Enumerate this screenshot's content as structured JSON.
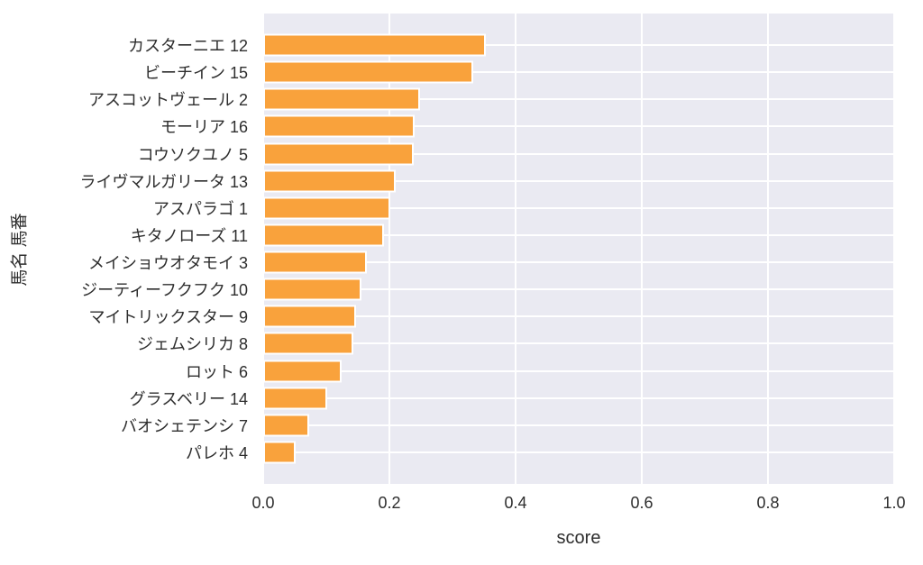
{
  "chart_data": {
    "type": "bar",
    "orientation": "horizontal",
    "title": "",
    "xlabel": "score",
    "ylabel": "馬名 馬番",
    "xlim": [
      0.0,
      1.0
    ],
    "xticks": [
      "0.0",
      "0.2",
      "0.4",
      "0.6",
      "0.8",
      "1.0"
    ],
    "grid": "on",
    "legend": "none",
    "bar_color": "#f9a23c",
    "plot_bg_color": "#eaeaf2",
    "grid_color": "#ffffff",
    "text_color": "#2e2e2e",
    "categories": [
      "カスターニエ 12",
      "ビーチイン 15",
      "アスコットヴェール 2",
      "モーリア 16",
      "コウソクユノ 5",
      "ライヴマルガリータ 13",
      "アスパラゴ 1",
      "キタノローズ 11",
      "メイショウオタモイ 3",
      "ジーティーフクフク 10",
      "マイトリックスター 9",
      "ジェムシリカ 8",
      "ロット 6",
      "グラスベリー 14",
      "バオシェテンシ 7",
      "パレホ 4"
    ],
    "values": [
      0.353,
      0.333,
      0.248,
      0.24,
      0.238,
      0.21,
      0.202,
      0.191,
      0.164,
      0.156,
      0.147,
      0.143,
      0.124,
      0.102,
      0.073,
      0.052
    ]
  }
}
